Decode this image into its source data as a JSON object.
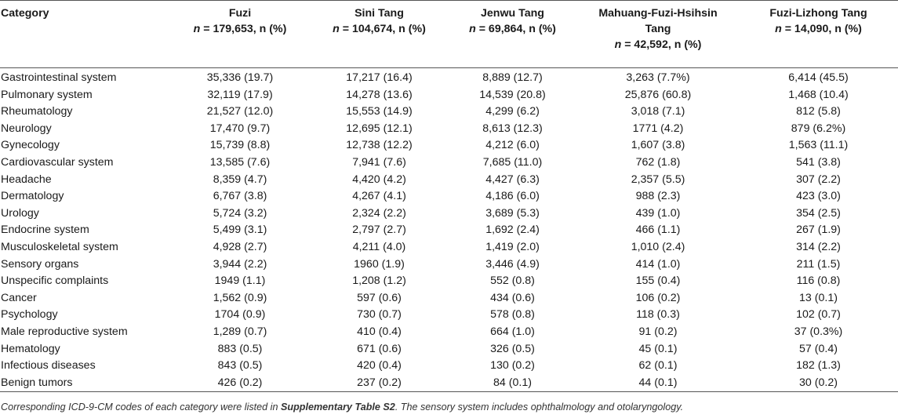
{
  "table": {
    "header": {
      "category": "Category",
      "columns": [
        {
          "name": "Fuzi",
          "n_prefix": "n",
          "n_suffix": " = 179,653, n (%)"
        },
        {
          "name": "Sini Tang",
          "n_prefix": "n",
          "n_suffix": " = 104,674, n (%)"
        },
        {
          "name": "Jenwu Tang",
          "n_prefix": "n",
          "n_suffix": " = 69,864, n (%)"
        },
        {
          "name": "Mahuang-Fuzi-Hsihsin Tang",
          "n_prefix": "n",
          "n_suffix": " = 42,592, n (%)"
        },
        {
          "name": "Fuzi-Lizhong Tang",
          "n_prefix": "n",
          "n_suffix": " = 14,090, n (%)"
        }
      ]
    },
    "rows": [
      {
        "category": "Gastrointestinal system",
        "values": [
          "35,336 (19.7)",
          "17,217 (16.4)",
          "8,889 (12.7)",
          "3,263 (7.7%)",
          "6,414 (45.5)"
        ]
      },
      {
        "category": "Pulmonary system",
        "values": [
          "32,119 (17.9)",
          "14,278 (13.6)",
          "14,539 (20.8)",
          "25,876 (60.8)",
          "1,468 (10.4)"
        ]
      },
      {
        "category": "Rheumatology",
        "values": [
          "21,527 (12.0)",
          "15,553 (14.9)",
          "4,299 (6.2)",
          "3,018 (7.1)",
          "812 (5.8)"
        ]
      },
      {
        "category": "Neurology",
        "values": [
          "17,470 (9.7)",
          "12,695 (12.1)",
          "8,613 (12.3)",
          "1771 (4.2)",
          "879 (6.2%)"
        ]
      },
      {
        "category": "Gynecology",
        "values": [
          "15,739 (8.8)",
          "12,738 (12.2)",
          "4,212 (6.0)",
          "1,607 (3.8)",
          "1,563 (11.1)"
        ]
      },
      {
        "category": "Cardiovascular system",
        "values": [
          "13,585 (7.6)",
          "7,941 (7.6)",
          "7,685 (11.0)",
          "762 (1.8)",
          "541 (3.8)"
        ]
      },
      {
        "category": "Headache",
        "values": [
          "8,359 (4.7)",
          "4,420 (4.2)",
          "4,427 (6.3)",
          "2,357 (5.5)",
          "307 (2.2)"
        ]
      },
      {
        "category": "Dermatology",
        "values": [
          "6,767 (3.8)",
          "4,267 (4.1)",
          "4,186 (6.0)",
          "988 (2.3)",
          "423 (3.0)"
        ]
      },
      {
        "category": "Urology",
        "values": [
          "5,724 (3.2)",
          "2,324 (2.2)",
          "3,689 (5.3)",
          "439 (1.0)",
          "354 (2.5)"
        ]
      },
      {
        "category": "Endocrine system",
        "values": [
          "5,499 (3.1)",
          "2,797 (2.7)",
          "1,692 (2.4)",
          "466 (1.1)",
          "267 (1.9)"
        ]
      },
      {
        "category": "Musculoskeletal system",
        "values": [
          "4,928 (2.7)",
          "4,211 (4.0)",
          "1,419 (2.0)",
          "1,010 (2.4)",
          "314 (2.2)"
        ]
      },
      {
        "category": "Sensory organs",
        "values": [
          "3,944 (2.2)",
          "1960 (1.9)",
          "3,446 (4.9)",
          "414 (1.0)",
          "211 (1.5)"
        ]
      },
      {
        "category": "Unspecific complaints",
        "values": [
          "1949 (1.1)",
          "1,208 (1.2)",
          "552 (0.8)",
          "155 (0.4)",
          "116 (0.8)"
        ]
      },
      {
        "category": "Cancer",
        "values": [
          "1,562 (0.9)",
          "597 (0.6)",
          "434 (0.6)",
          "106 (0.2)",
          "13 (0.1)"
        ]
      },
      {
        "category": "Psychology",
        "values": [
          "1704 (0.9)",
          "730 (0.7)",
          "578 (0.8)",
          "118 (0.3)",
          "102 (0.7)"
        ]
      },
      {
        "category": "Male reproductive system",
        "values": [
          "1,289 (0.7)",
          "410 (0.4)",
          "664 (1.0)",
          "91 (0.2)",
          "37 (0.3%)"
        ]
      },
      {
        "category": "Hematology",
        "values": [
          "883 (0.5)",
          "671 (0.6)",
          "326 (0.5)",
          "45 (0.1)",
          "57 (0.4)"
        ]
      },
      {
        "category": "Infectious diseases",
        "values": [
          "843 (0.5)",
          "420 (0.4)",
          "130 (0.2)",
          "62 (0.1)",
          "182 (1.3)"
        ]
      },
      {
        "category": "Benign tumors",
        "values": [
          "426 (0.2)",
          "237 (0.2)",
          "84 (0.1)",
          "44 (0.1)",
          "30 (0.2)"
        ]
      }
    ]
  },
  "footnote": {
    "part1": "Corresponding ICD-9-CM codes of each category were listed in ",
    "bold": "Supplementary Table S2",
    "part2": ". The sensory system includes ophthalmology and otolaryngology."
  }
}
